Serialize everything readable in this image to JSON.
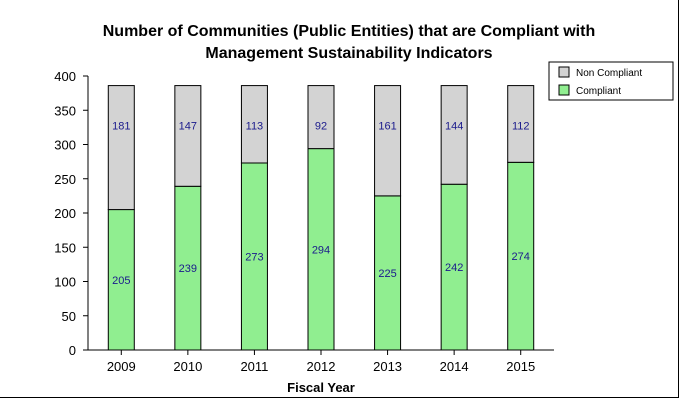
{
  "chart_data": {
    "type": "bar",
    "stacked": true,
    "title_lines": [
      "Number of Communities (Public Entities) that are Compliant with",
      "Management Sustainability Indicators"
    ],
    "xlabel": "Fiscal Year",
    "ylabel": "",
    "categories": [
      "2009",
      "2010",
      "2011",
      "2012",
      "2013",
      "2014",
      "2015"
    ],
    "series": [
      {
        "name": "Compliant",
        "values": [
          205,
          239,
          273,
          294,
          225,
          242,
          274
        ],
        "color": "#90ee90"
      },
      {
        "name": "Non Compliant",
        "values": [
          181,
          147,
          113,
          92,
          161,
          144,
          112
        ],
        "color": "#d3d3d3"
      }
    ],
    "ylim": [
      0,
      400
    ],
    "yticks": [
      0,
      50,
      100,
      150,
      200,
      250,
      300,
      350,
      400
    ],
    "grid": false,
    "legend_position": "top-right"
  }
}
